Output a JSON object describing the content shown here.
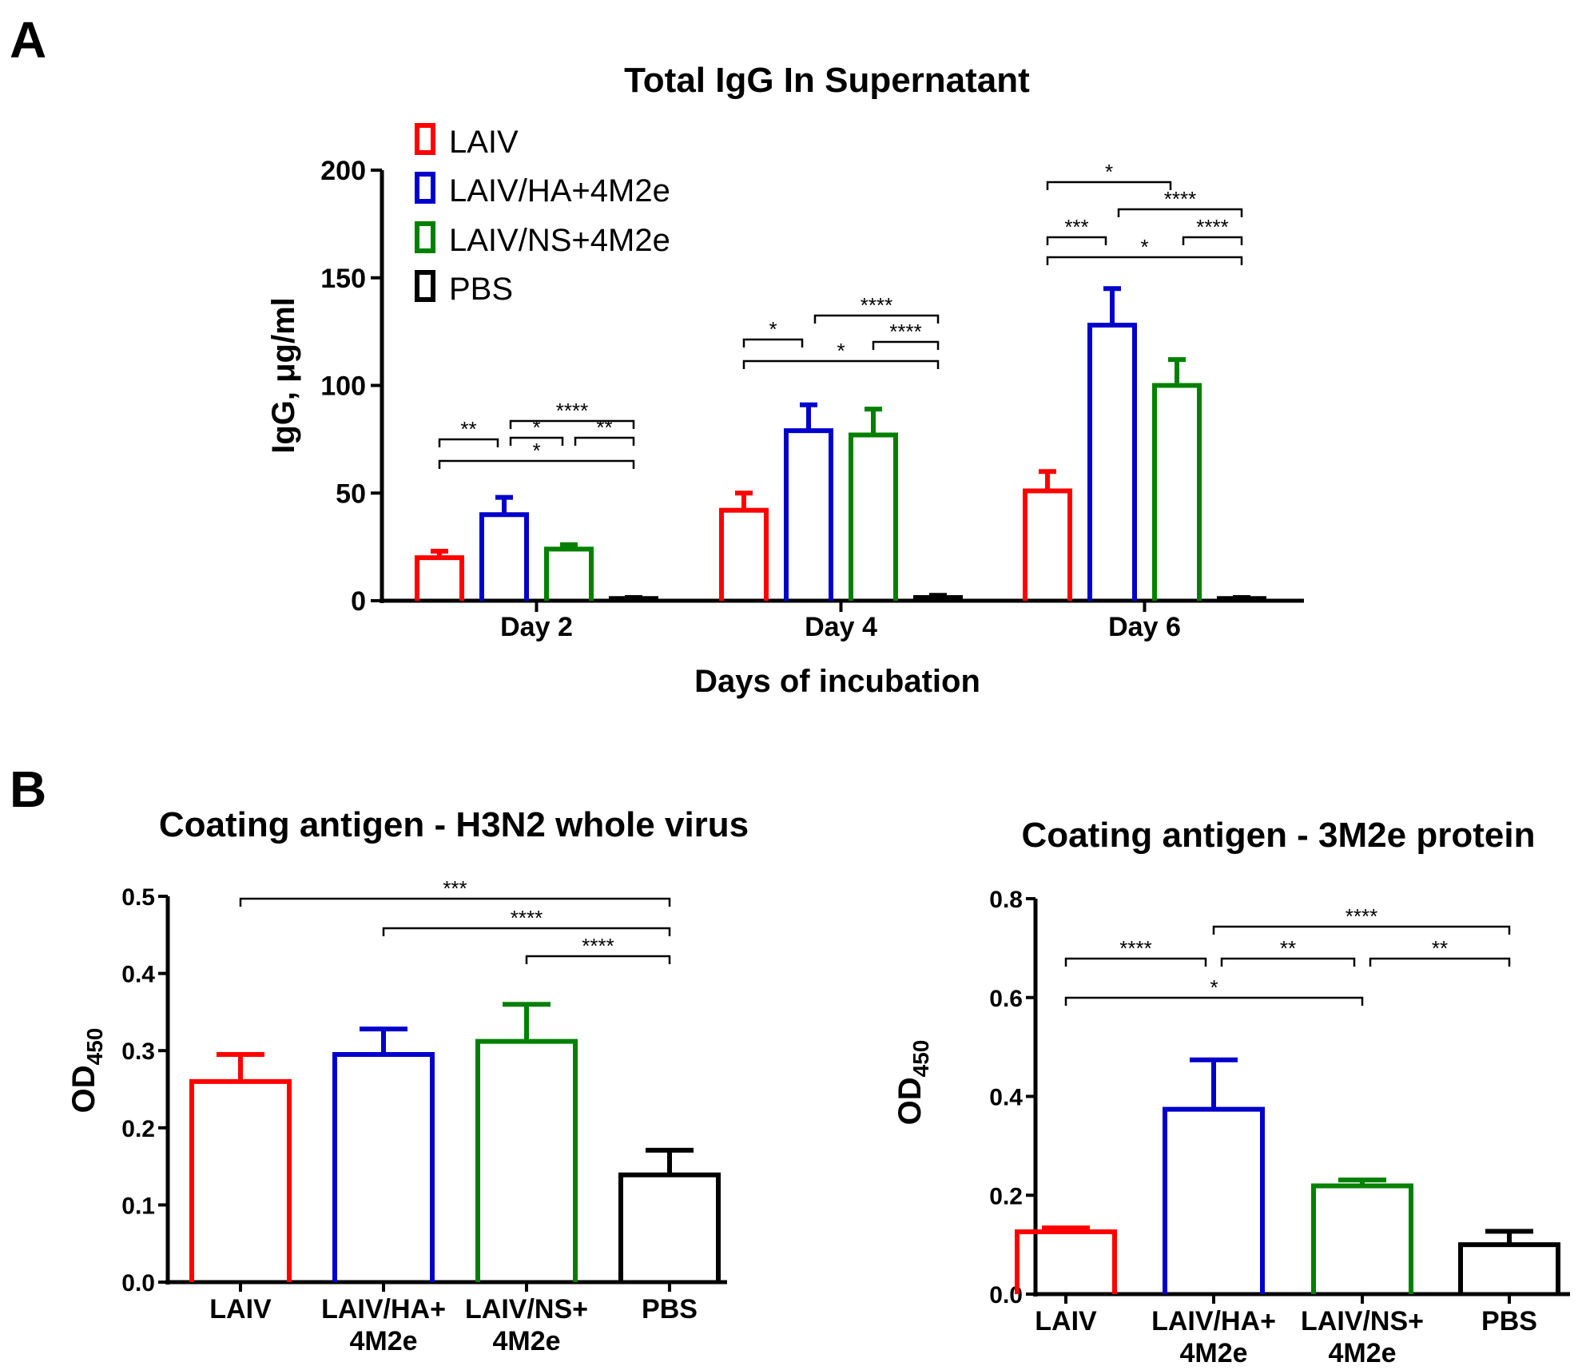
{
  "panels": {
    "a_label": "A",
    "b_label": "B"
  },
  "chart_data": [
    {
      "type": "bar",
      "title": "Total IgG In Supernatant",
      "xlabel": "Days of incubation",
      "ylabel": "IgG, μg/ml",
      "ylim": [
        0,
        200
      ],
      "yticks": [
        "0",
        "50",
        "100",
        "150",
        "200"
      ],
      "categories": [
        "Day 2",
        "Day 4",
        "Day 6"
      ],
      "series": [
        {
          "name": "LAIV",
          "color": "#ff0000",
          "values": [
            20,
            42,
            51
          ],
          "errors": [
            3,
            8,
            9
          ]
        },
        {
          "name": "LAIV/HA+4M2e",
          "color": "#0000cc",
          "values": [
            40,
            79,
            128
          ],
          "errors": [
            8,
            12,
            17
          ]
        },
        {
          "name": "LAIV/NS+4M2e",
          "color": "#008000",
          "values": [
            24,
            77,
            100
          ],
          "errors": [
            2,
            12,
            12
          ]
        },
        {
          "name": "PBS",
          "color": "#000000",
          "values": [
            1,
            1.5,
            1
          ],
          "errors": [
            0.5,
            1,
            0.5
          ]
        }
      ],
      "legend_position": "top-left",
      "significance": [
        {
          "group": 0,
          "from": 0,
          "to": 1,
          "label": "**"
        },
        {
          "group": 0,
          "from": 1,
          "to": 3,
          "label": "****"
        },
        {
          "group": 0,
          "from": 1,
          "to": 2,
          "label": "*"
        },
        {
          "group": 0,
          "from": 2,
          "to": 3,
          "label": "**"
        },
        {
          "group": 0,
          "from": 0,
          "to": 3,
          "label": "*"
        },
        {
          "group": 1,
          "from": 0,
          "to": 1,
          "label": "*"
        },
        {
          "group": 1,
          "from": 1,
          "to": 3,
          "label": "****"
        },
        {
          "group": 1,
          "from": 2,
          "to": 3,
          "label": "****"
        },
        {
          "group": 1,
          "from": 0,
          "to": 3,
          "label": "*"
        },
        {
          "group": 2,
          "from": 0,
          "to": 2,
          "label": "*"
        },
        {
          "group": 2,
          "from": 1,
          "to": 3,
          "label": "****"
        },
        {
          "group": 2,
          "from": 0,
          "to": 1,
          "label": "***"
        },
        {
          "group": 2,
          "from": 2,
          "to": 3,
          "label": "****"
        },
        {
          "group": 2,
          "from": 0,
          "to": 3,
          "label": "*"
        }
      ]
    },
    {
      "type": "bar",
      "title": "Coating antigen - H3N2 whole virus",
      "xlabel": "",
      "ylabel": "OD",
      "ylabel_sub": "450",
      "ylim": [
        0,
        0.5
      ],
      "yticks": [
        "0.0",
        "0.1",
        "0.2",
        "0.3",
        "0.4",
        "0.5"
      ],
      "categories": [
        [
          "LAIV"
        ],
        [
          "LAIV/HA+",
          "4M2e"
        ],
        [
          "LAIV/NS+",
          "4M2e"
        ],
        [
          "PBS"
        ]
      ],
      "colors": [
        "#ff0000",
        "#0000cc",
        "#008000",
        "#000000"
      ],
      "values": [
        0.26,
        0.295,
        0.312,
        0.139
      ],
      "errors": [
        0.035,
        0.033,
        0.048,
        0.032
      ],
      "significance": [
        {
          "from": 0,
          "to": 3,
          "label": "***"
        },
        {
          "from": 1,
          "to": 3,
          "label": "****"
        },
        {
          "from": 2,
          "to": 3,
          "label": "****"
        }
      ]
    },
    {
      "type": "bar",
      "title": "Coating antigen - 3M2e protein",
      "xlabel": "",
      "ylabel": "OD",
      "ylabel_sub": "450",
      "ylim": [
        0,
        0.8
      ],
      "yticks": [
        "0.0",
        "0.2",
        "0.4",
        "0.6",
        "0.8"
      ],
      "categories": [
        [
          "LAIV"
        ],
        [
          "LAIV/HA+",
          "4M2e"
        ],
        [
          "LAIV/NS+",
          "4M2e"
        ],
        [
          "PBS"
        ]
      ],
      "colors": [
        "#ff0000",
        "#0000cc",
        "#008000",
        "#000000"
      ],
      "values": [
        0.126,
        0.374,
        0.219,
        0.1
      ],
      "errors": [
        0.008,
        0.1,
        0.012,
        0.027
      ],
      "significance": [
        {
          "from": 1,
          "to": 3,
          "label": "****"
        },
        {
          "from": 0,
          "to": 1,
          "label": "****"
        },
        {
          "from": 1,
          "to": 2,
          "label": "**"
        },
        {
          "from": 2,
          "to": 3,
          "label": "**"
        },
        {
          "from": 0,
          "to": 2,
          "label": "*"
        }
      ]
    }
  ]
}
